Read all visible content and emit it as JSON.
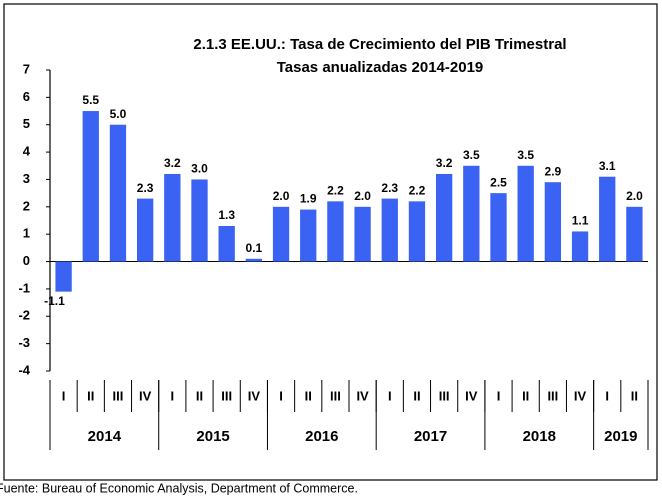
{
  "chart_data": {
    "type": "bar",
    "title": "2.1.3 EE.UU.:  Tasa de Crecimiento del PIB Trimestral",
    "subtitle": "Tasas anualizadas 2014-2019",
    "categories": [
      "I",
      "II",
      "III",
      "IV",
      "I",
      "II",
      "III",
      "IV",
      "I",
      "II",
      "III",
      "IV",
      "I",
      "II",
      "III",
      "IV",
      "I",
      "II",
      "III",
      "IV",
      "I",
      "II"
    ],
    "years": [
      "2014",
      "2015",
      "2016",
      "2017",
      "2018",
      "2019"
    ],
    "values": [
      -1.1,
      5.5,
      5.0,
      2.3,
      3.2,
      3.0,
      1.3,
      0.1,
      2.0,
      1.9,
      2.2,
      2.0,
      2.3,
      2.2,
      3.2,
      3.5,
      2.5,
      3.5,
      2.9,
      1.1,
      3.1,
      2.0
    ],
    "value_labels": [
      "-1.1",
      "5.5",
      "5.0",
      "2.3",
      "3.2",
      "3.0",
      "1.3",
      "0.1",
      "2.0",
      "1.9",
      "2.2",
      "2.0",
      "2.3",
      "2.2",
      "3.2",
      "3.5",
      "2.5",
      "3.5",
      "2.9",
      "1.1",
      "3.1",
      "2.0"
    ],
    "color": "#3b63f3",
    "ylim": [
      -4,
      7
    ],
    "yticks": [
      -4,
      -3,
      -2,
      -1,
      0,
      1,
      2,
      3,
      4,
      5,
      6,
      7
    ],
    "source": "Fuente: Bureau of Economic Analysis, Department of Commerce."
  }
}
